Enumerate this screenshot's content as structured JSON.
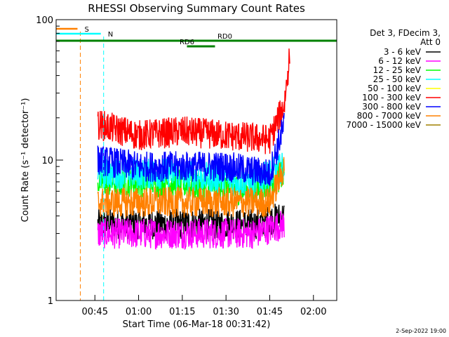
{
  "chart_data": {
    "type": "line",
    "title": "RHESSI Observing Summary Count Rates",
    "xlabel": "Start Time (06-Mar-18 00:31:42)",
    "ylabel": "Count Rate (s⁻¹ detector⁻¹)",
    "y_scale": "log",
    "ylim": [
      1,
      100
    ],
    "xlim": [
      "00:31:42",
      "02:08:00"
    ],
    "x_ticks": [
      "00:45",
      "01:00",
      "01:15",
      "01:30",
      "01:45",
      "02:00"
    ],
    "y_ticks": [
      {
        "value": 1,
        "label": "1"
      },
      {
        "value": 10,
        "label": "10"
      },
      {
        "value": 100,
        "label": "100"
      }
    ],
    "legend": {
      "placement": "right",
      "header": [
        "Det 3, FDecim 3,",
        "Att 0"
      ],
      "entries": [
        {
          "label": "3 - 6 keV",
          "color": "#000000"
        },
        {
          "label": "6 - 12 keV",
          "color": "#ff00ff"
        },
        {
          "label": "12 - 25 keV",
          "color": "#00ff00"
        },
        {
          "label": "25 - 50 keV",
          "color": "#00ffff"
        },
        {
          "label": "50 - 100 keV",
          "color": "#ffff00"
        },
        {
          "label": "100 - 300 keV",
          "color": "#ff0000"
        },
        {
          "label": "300 - 800 keV",
          "color": "#0000ff"
        },
        {
          "label": "800 - 7000 keV",
          "color": "#ff8000"
        },
        {
          "label": "7000 - 15000 keV",
          "color": "#a08000"
        }
      ]
    },
    "series": [
      {
        "band": "3 - 6 keV",
        "color": "#000000",
        "x": [
          "00:46",
          "01:10",
          "01:40",
          "01:50"
        ],
        "y": [
          3.5,
          3.5,
          3.5,
          4
        ]
      },
      {
        "band": "6 - 12 keV",
        "color": "#ff00ff",
        "x": [
          "00:46",
          "01:10",
          "01:40",
          "01:50"
        ],
        "y": [
          3.0,
          3.0,
          3.0,
          3.5
        ]
      },
      {
        "band": "12 - 25 keV",
        "color": "#00ff00",
        "x": [
          "00:46",
          "01:10",
          "01:40",
          "01:50"
        ],
        "y": [
          7,
          7,
          6,
          8
        ]
      },
      {
        "band": "25 - 50 keV",
        "color": "#00ffff",
        "x": [
          "00:46",
          "01:10",
          "01:40",
          "01:50"
        ],
        "y": [
          8,
          8,
          7,
          9
        ]
      },
      {
        "band": "100 - 300 keV",
        "color": "#ff0000",
        "x": [
          "00:46",
          "01:00",
          "01:15",
          "01:30",
          "01:45",
          "01:50",
          "01:52"
        ],
        "y": [
          18,
          15,
          16,
          15,
          14,
          25,
          60
        ]
      },
      {
        "band": "300 - 800 keV",
        "color": "#0000ff",
        "x": [
          "00:46",
          "01:00",
          "01:15",
          "01:30",
          "01:45",
          "01:50"
        ],
        "y": [
          10,
          9,
          9,
          9,
          8,
          18
        ]
      },
      {
        "band": "800 - 7000 keV",
        "color": "#ff8000",
        "x": [
          "00:46",
          "01:00",
          "01:15",
          "01:30",
          "01:45",
          "01:50"
        ],
        "y": [
          5,
          5,
          5,
          5,
          5,
          9
        ]
      }
    ],
    "annotations": [
      {
        "label": "S",
        "color": "#ff8000",
        "x": "00:40"
      },
      {
        "label": "N",
        "color": "#00ffff",
        "x": "00:48"
      },
      {
        "label": "RD0",
        "color": "#008000",
        "x": "01:32"
      },
      {
        "label": "RD6",
        "color": "#008000",
        "x": "01:19"
      }
    ],
    "footer_timestamp": "2-Sep-2022 19:00"
  }
}
